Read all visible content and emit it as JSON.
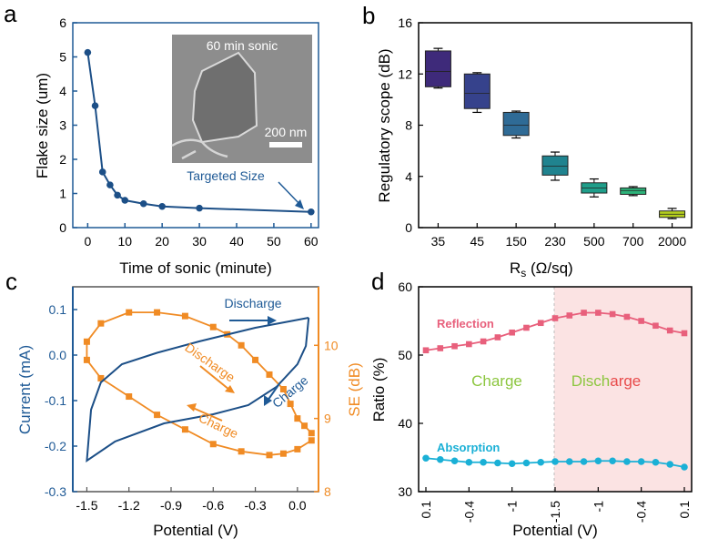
{
  "colors": {
    "navy": "#1f5a96",
    "blue_data": "#1c4f87",
    "orange": "#f08b24",
    "pink": "#e8607c",
    "cyan": "#1ab0d6",
    "green_text": "#8cc63f",
    "red_text": "#e84a4a",
    "shade": "#fbe3e3",
    "sem_bg": "#8d8d8d"
  },
  "chart_data": [
    {
      "panel": "a",
      "type": "line",
      "xlabel": "Time of sonic (minute)",
      "ylabel": "Flake size (um)",
      "xlim": [
        -4,
        62
      ],
      "ylim": [
        0,
        6
      ],
      "xticks": [
        "0",
        "10",
        "20",
        "30",
        "40",
        "50",
        "60"
      ],
      "yticks": [
        "0",
        "1",
        "2",
        "3",
        "4",
        "5",
        "6"
      ],
      "x": [
        0,
        2,
        4,
        6,
        8,
        10,
        15,
        20,
        30,
        60
      ],
      "values": [
        5.13,
        3.57,
        1.63,
        1.25,
        0.95,
        0.8,
        0.7,
        0.62,
        0.57,
        0.46
      ],
      "inset": {
        "title": "60 min sonic",
        "scale_label": "200 nm"
      },
      "annotation": "Targeted Size"
    },
    {
      "panel": "b",
      "type": "box",
      "xlabel_main": "R",
      "xlabel_sub": "s",
      "xlabel_unit": " (Ω/sq)",
      "ylabel": "Regulatory scope (dB)",
      "ylim": [
        0,
        16
      ],
      "yticks": [
        "0",
        "4",
        "8",
        "12",
        "16"
      ],
      "categories": [
        "35",
        "45",
        "150",
        "230",
        "500",
        "700",
        "2000"
      ],
      "boxes": [
        {
          "q1": 11.0,
          "q3": 13.8,
          "median": 12.2,
          "min": 10.9,
          "max": 14.0,
          "color": "#3e2a7a"
        },
        {
          "q1": 9.3,
          "q3": 12.0,
          "median": 10.5,
          "min": 9.0,
          "max": 12.1,
          "color": "#36428c"
        },
        {
          "q1": 7.2,
          "q3": 9.0,
          "median": 8.0,
          "min": 7.0,
          "max": 9.1,
          "color": "#2f6b96"
        },
        {
          "q1": 4.1,
          "q3": 5.6,
          "median": 4.8,
          "min": 3.7,
          "max": 5.9,
          "color": "#20838f"
        },
        {
          "q1": 2.7,
          "q3": 3.5,
          "median": 3.1,
          "min": 2.4,
          "max": 3.8,
          "color": "#1f9e8a"
        },
        {
          "q1": 2.6,
          "q3": 3.1,
          "median": 2.9,
          "min": 2.5,
          "max": 3.2,
          "color": "#2db37a"
        },
        {
          "q1": 0.8,
          "q3": 1.3,
          "median": 1.05,
          "min": 0.7,
          "max": 1.5,
          "color": "#b5cf1e"
        }
      ]
    },
    {
      "panel": "c",
      "type": "line",
      "xlabel": "Potential (V)",
      "ylabel_left": "Current (mA)",
      "ylabel_right": "SE (dB)",
      "xlim": [
        -1.6,
        0.15
      ],
      "ylim_left": [
        -0.3,
        0.15
      ],
      "ylim_right": [
        8,
        10.8
      ],
      "xticks": [
        "-1.5",
        "-1.2",
        "-0.9",
        "-0.6",
        "-0.3",
        "0.0"
      ],
      "xtick_values": [
        -1.5,
        -1.2,
        -0.9,
        -0.6,
        -0.3,
        0.0
      ],
      "yticks_left": [
        "0.1",
        "0.0",
        "-0.1",
        "-0.2",
        "-0.3"
      ],
      "ytick_left_values": [
        0.1,
        0.0,
        -0.1,
        -0.2,
        -0.3
      ],
      "yticks_right": [
        "10",
        "9",
        "8"
      ],
      "ytick_right_values": [
        10,
        9,
        8
      ],
      "series_cv": {
        "name": "Current",
        "points": [
          [
            0.08,
            0.082
          ],
          [
            -0.3,
            0.06
          ],
          [
            -0.7,
            0.03
          ],
          [
            -1.0,
            0.005
          ],
          [
            -1.25,
            -0.02
          ],
          [
            -1.4,
            -0.06
          ],
          [
            -1.47,
            -0.12
          ],
          [
            -1.5,
            -0.232
          ],
          [
            -1.3,
            -0.19
          ],
          [
            -0.95,
            -0.15
          ],
          [
            -0.6,
            -0.13
          ],
          [
            -0.35,
            -0.11
          ],
          [
            -0.15,
            -0.07
          ],
          [
            0.0,
            -0.02
          ],
          [
            0.06,
            0.02
          ],
          [
            0.08,
            0.082
          ]
        ]
      },
      "series_se": {
        "name": "SE",
        "x": [
          0.1,
          0.05,
          0.0,
          -0.05,
          -0.1,
          -0.2,
          -0.3,
          -0.4,
          -0.5,
          -0.6,
          -0.8,
          -1.0,
          -1.2,
          -1.4,
          -1.5,
          -1.5,
          -1.4,
          -1.2,
          -1.0,
          -0.8,
          -0.6,
          -0.4,
          -0.2,
          -0.1,
          0.0,
          0.1
        ],
        "values": [
          8.8,
          8.9,
          9.0,
          9.2,
          9.4,
          9.6,
          9.8,
          10.0,
          10.15,
          10.25,
          10.4,
          10.45,
          10.45,
          10.3,
          10.05,
          9.8,
          9.55,
          9.3,
          9.05,
          8.85,
          8.65,
          8.55,
          8.5,
          8.52,
          8.58,
          8.7
        ]
      },
      "annotations": [
        "Discharge",
        "Charge",
        "Discharge",
        "Charge"
      ]
    },
    {
      "panel": "d",
      "type": "line",
      "xlabel": "Potential (V)",
      "ylabel": "Ratio (%)",
      "ylim": [
        30,
        60
      ],
      "yticks": [
        "30",
        "40",
        "50",
        "60"
      ],
      "ytick_values": [
        30,
        40,
        50,
        60
      ],
      "xticks": [
        "0.1",
        "-0.4",
        "-1",
        "-1.5",
        "-1",
        "-0.4",
        "0.1"
      ],
      "charge_label": "Charge",
      "discharge_label": "Discharge",
      "series": [
        {
          "name": "Reflection",
          "values": [
            50.7,
            51.0,
            51.3,
            51.6,
            52.0,
            52.6,
            53.3,
            54.0,
            54.7,
            55.4,
            55.8,
            56.2,
            56.2,
            56.0,
            55.6,
            55.0,
            54.3,
            53.6,
            53.2
          ]
        },
        {
          "name": "Absorption",
          "values": [
            34.9,
            34.7,
            34.5,
            34.3,
            34.3,
            34.2,
            34.1,
            34.2,
            34.3,
            34.4,
            34.4,
            34.4,
            34.5,
            34.5,
            34.4,
            34.4,
            34.3,
            34.0,
            33.6
          ]
        }
      ]
    }
  ],
  "panel_labels": [
    "a",
    "b",
    "c",
    "d"
  ]
}
